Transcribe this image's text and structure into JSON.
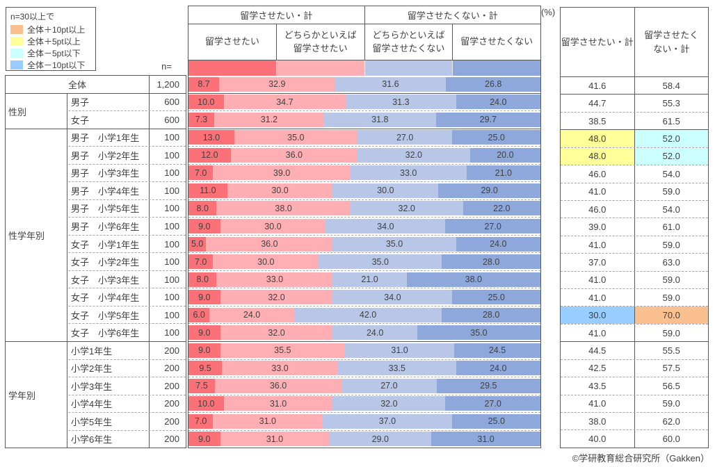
{
  "legend": {
    "title": "n=30以上で",
    "items": [
      {
        "key": "plus10",
        "label": "全体＋10pt以上",
        "color": "#FAC090"
      },
      {
        "key": "plus5",
        "label": "全体＋5pt以上",
        "color": "#FFFF99"
      },
      {
        "key": "minus5",
        "label": "全体－5pt以下",
        "color": "#CCFFFF"
      },
      {
        "key": "minus10",
        "label": "全体－10pt以下",
        "color": "#99CCFF"
      }
    ]
  },
  "n_header": "n=",
  "unit_label": "(%)",
  "footer": "©学研教育総合研究所（Gakken）",
  "chart_data": {
    "type": "bar",
    "orientation": "horizontal-stacked",
    "unit": "%",
    "xlim": [
      0,
      100
    ],
    "series_headers": {
      "want_total": "留学させたい・計",
      "not_want_total": "留学させたくない・計"
    },
    "segments": [
      {
        "label": "留学させたい",
        "color": "#FC7177"
      },
      {
        "label": "どちらかといえば\n留学させたい",
        "color": "#FFAFB3"
      },
      {
        "label": "どちらかといえば\n留学させたくない",
        "color": "#B8C7E7"
      },
      {
        "label": "留学させたくない",
        "color": "#8FA8DB"
      }
    ],
    "right_table": {
      "col1_header": "留学させたい・計",
      "col2_header": "留学させたく\nない・計"
    },
    "rows": [
      {
        "group": "",
        "label": "全体",
        "n": "1,200",
        "values": [
          8.7,
          32.9,
          31.6,
          26.8
        ],
        "want_total": 41.6,
        "not_want_total": 58.4,
        "hl_want": "",
        "hl_not": ""
      },
      {
        "group": "性別",
        "label": "男子",
        "n": "600",
        "values": [
          10.0,
          34.7,
          31.3,
          24.0
        ],
        "want_total": 44.7,
        "not_want_total": 55.3,
        "hl_want": "",
        "hl_not": ""
      },
      {
        "group": "性別",
        "label": "女子",
        "n": "600",
        "values": [
          7.3,
          31.2,
          31.8,
          29.7
        ],
        "want_total": 38.5,
        "not_want_total": 61.5,
        "hl_want": "",
        "hl_not": ""
      },
      {
        "group": "性学年別",
        "label": "男子　小学1年生",
        "n": "100",
        "values": [
          13.0,
          35.0,
          27.0,
          25.0
        ],
        "want_total": 48.0,
        "not_want_total": 52.0,
        "hl_want": "plus5",
        "hl_not": "minus5"
      },
      {
        "group": "性学年別",
        "label": "男子　小学2年生",
        "n": "100",
        "values": [
          12.0,
          36.0,
          32.0,
          20.0
        ],
        "want_total": 48.0,
        "not_want_total": 52.0,
        "hl_want": "plus5",
        "hl_not": "minus5"
      },
      {
        "group": "性学年別",
        "label": "男子　小学3年生",
        "n": "100",
        "values": [
          7.0,
          39.0,
          33.0,
          21.0
        ],
        "want_total": 46.0,
        "not_want_total": 54.0,
        "hl_want": "",
        "hl_not": ""
      },
      {
        "group": "性学年別",
        "label": "男子　小学4年生",
        "n": "100",
        "values": [
          11.0,
          30.0,
          30.0,
          29.0
        ],
        "want_total": 41.0,
        "not_want_total": 59.0,
        "hl_want": "",
        "hl_not": ""
      },
      {
        "group": "性学年別",
        "label": "男子　小学5年生",
        "n": "100",
        "values": [
          8.0,
          38.0,
          32.0,
          22.0
        ],
        "want_total": 46.0,
        "not_want_total": 54.0,
        "hl_want": "",
        "hl_not": ""
      },
      {
        "group": "性学年別",
        "label": "男子　小学6年生",
        "n": "100",
        "values": [
          9.0,
          30.0,
          34.0,
          27.0
        ],
        "want_total": 39.0,
        "not_want_total": 61.0,
        "hl_want": "",
        "hl_not": ""
      },
      {
        "group": "性学年別",
        "label": "女子　小学1年生",
        "n": "100",
        "values": [
          5.0,
          36.0,
          35.0,
          24.0
        ],
        "want_total": 41.0,
        "not_want_total": 59.0,
        "hl_want": "",
        "hl_not": ""
      },
      {
        "group": "性学年別",
        "label": "女子　小学2年生",
        "n": "100",
        "values": [
          7.0,
          30.0,
          35.0,
          28.0
        ],
        "want_total": 37.0,
        "not_want_total": 63.0,
        "hl_want": "",
        "hl_not": ""
      },
      {
        "group": "性学年別",
        "label": "女子　小学3年生",
        "n": "100",
        "values": [
          8.0,
          33.0,
          21.0,
          38.0
        ],
        "want_total": 41.0,
        "not_want_total": 59.0,
        "hl_want": "",
        "hl_not": ""
      },
      {
        "group": "性学年別",
        "label": "女子　小学4年生",
        "n": "100",
        "values": [
          9.0,
          32.0,
          34.0,
          25.0
        ],
        "want_total": 41.0,
        "not_want_total": 59.0,
        "hl_want": "",
        "hl_not": ""
      },
      {
        "group": "性学年別",
        "label": "女子　小学5年生",
        "n": "100",
        "values": [
          6.0,
          24.0,
          42.0,
          28.0
        ],
        "want_total": 30.0,
        "not_want_total": 70.0,
        "hl_want": "minus10",
        "hl_not": "plus10"
      },
      {
        "group": "性学年別",
        "label": "女子　小学6年生",
        "n": "100",
        "values": [
          9.0,
          32.0,
          24.0,
          35.0
        ],
        "want_total": 41.0,
        "not_want_total": 59.0,
        "hl_want": "",
        "hl_not": ""
      },
      {
        "group": "学年別",
        "label": "小学1年生",
        "n": "200",
        "values": [
          9.0,
          35.5,
          31.0,
          24.5
        ],
        "want_total": 44.5,
        "not_want_total": 55.5,
        "hl_want": "",
        "hl_not": ""
      },
      {
        "group": "学年別",
        "label": "小学2年生",
        "n": "200",
        "values": [
          9.5,
          33.0,
          33.5,
          24.0
        ],
        "want_total": 42.5,
        "not_want_total": 57.5,
        "hl_want": "",
        "hl_not": ""
      },
      {
        "group": "学年別",
        "label": "小学3年生",
        "n": "200",
        "values": [
          7.5,
          36.0,
          27.0,
          29.5
        ],
        "want_total": 43.5,
        "not_want_total": 56.5,
        "hl_want": "",
        "hl_not": ""
      },
      {
        "group": "学年別",
        "label": "小学4年生",
        "n": "200",
        "values": [
          10.0,
          31.0,
          32.0,
          27.0
        ],
        "want_total": 41.0,
        "not_want_total": 59.0,
        "hl_want": "",
        "hl_not": ""
      },
      {
        "group": "学年別",
        "label": "小学5年生",
        "n": "200",
        "values": [
          7.0,
          31.0,
          37.0,
          25.0
        ],
        "want_total": 38.0,
        "not_want_total": 62.0,
        "hl_want": "",
        "hl_not": ""
      },
      {
        "group": "学年別",
        "label": "小学6年生",
        "n": "200",
        "values": [
          9.0,
          31.0,
          29.0,
          31.0
        ],
        "want_total": 40.0,
        "not_want_total": 60.0,
        "hl_want": "",
        "hl_not": ""
      }
    ]
  }
}
